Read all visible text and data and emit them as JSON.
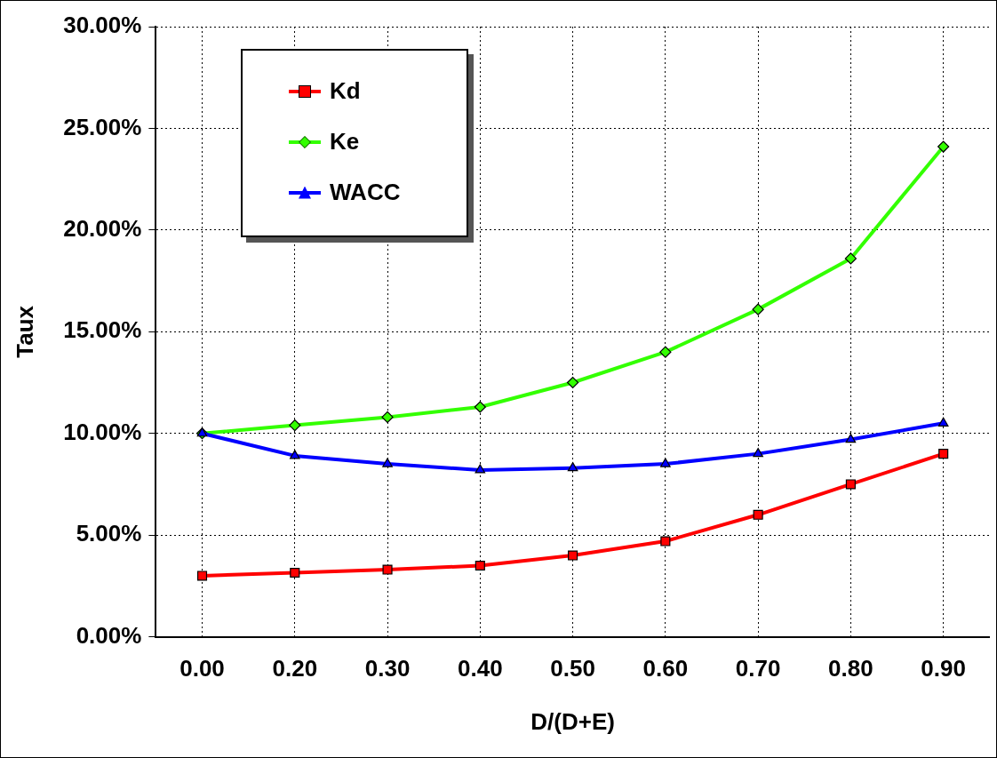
{
  "chart_data": {
    "type": "line",
    "xlabel": "D/(D+E)",
    "ylabel": "Taux",
    "categories": [
      "0.00",
      "0.20",
      "0.30",
      "0.40",
      "0.50",
      "0.60",
      "0.70",
      "0.80",
      "0.90"
    ],
    "series": [
      {
        "name": "Kd",
        "color": "#ff0000",
        "marker": "square",
        "values": [
          3.0,
          3.15,
          3.3,
          3.5,
          4.0,
          4.7,
          6.0,
          7.5,
          9.0
        ]
      },
      {
        "name": "Ke",
        "color": "#33ff00",
        "marker": "diamond",
        "values": [
          10.0,
          10.4,
          10.8,
          11.3,
          12.5,
          14.0,
          16.1,
          18.6,
          24.1
        ]
      },
      {
        "name": "WACC",
        "color": "#0000ff",
        "marker": "triangle",
        "values": [
          10.0,
          8.9,
          8.5,
          8.2,
          8.3,
          8.5,
          9.0,
          9.7,
          10.5
        ]
      }
    ],
    "ylim": [
      0,
      30
    ],
    "yticks": [
      {
        "value": 0,
        "label": "0.00%"
      },
      {
        "value": 5,
        "label": "5.00%"
      },
      {
        "value": 10,
        "label": "10.00%"
      },
      {
        "value": 15,
        "label": "15.00%"
      },
      {
        "value": 20,
        "label": "20.00%"
      },
      {
        "value": 25,
        "label": "25.00%"
      },
      {
        "value": 30,
        "label": "30.00%"
      }
    ],
    "grid": true,
    "legend": "top left",
    "line_style": "solid"
  }
}
